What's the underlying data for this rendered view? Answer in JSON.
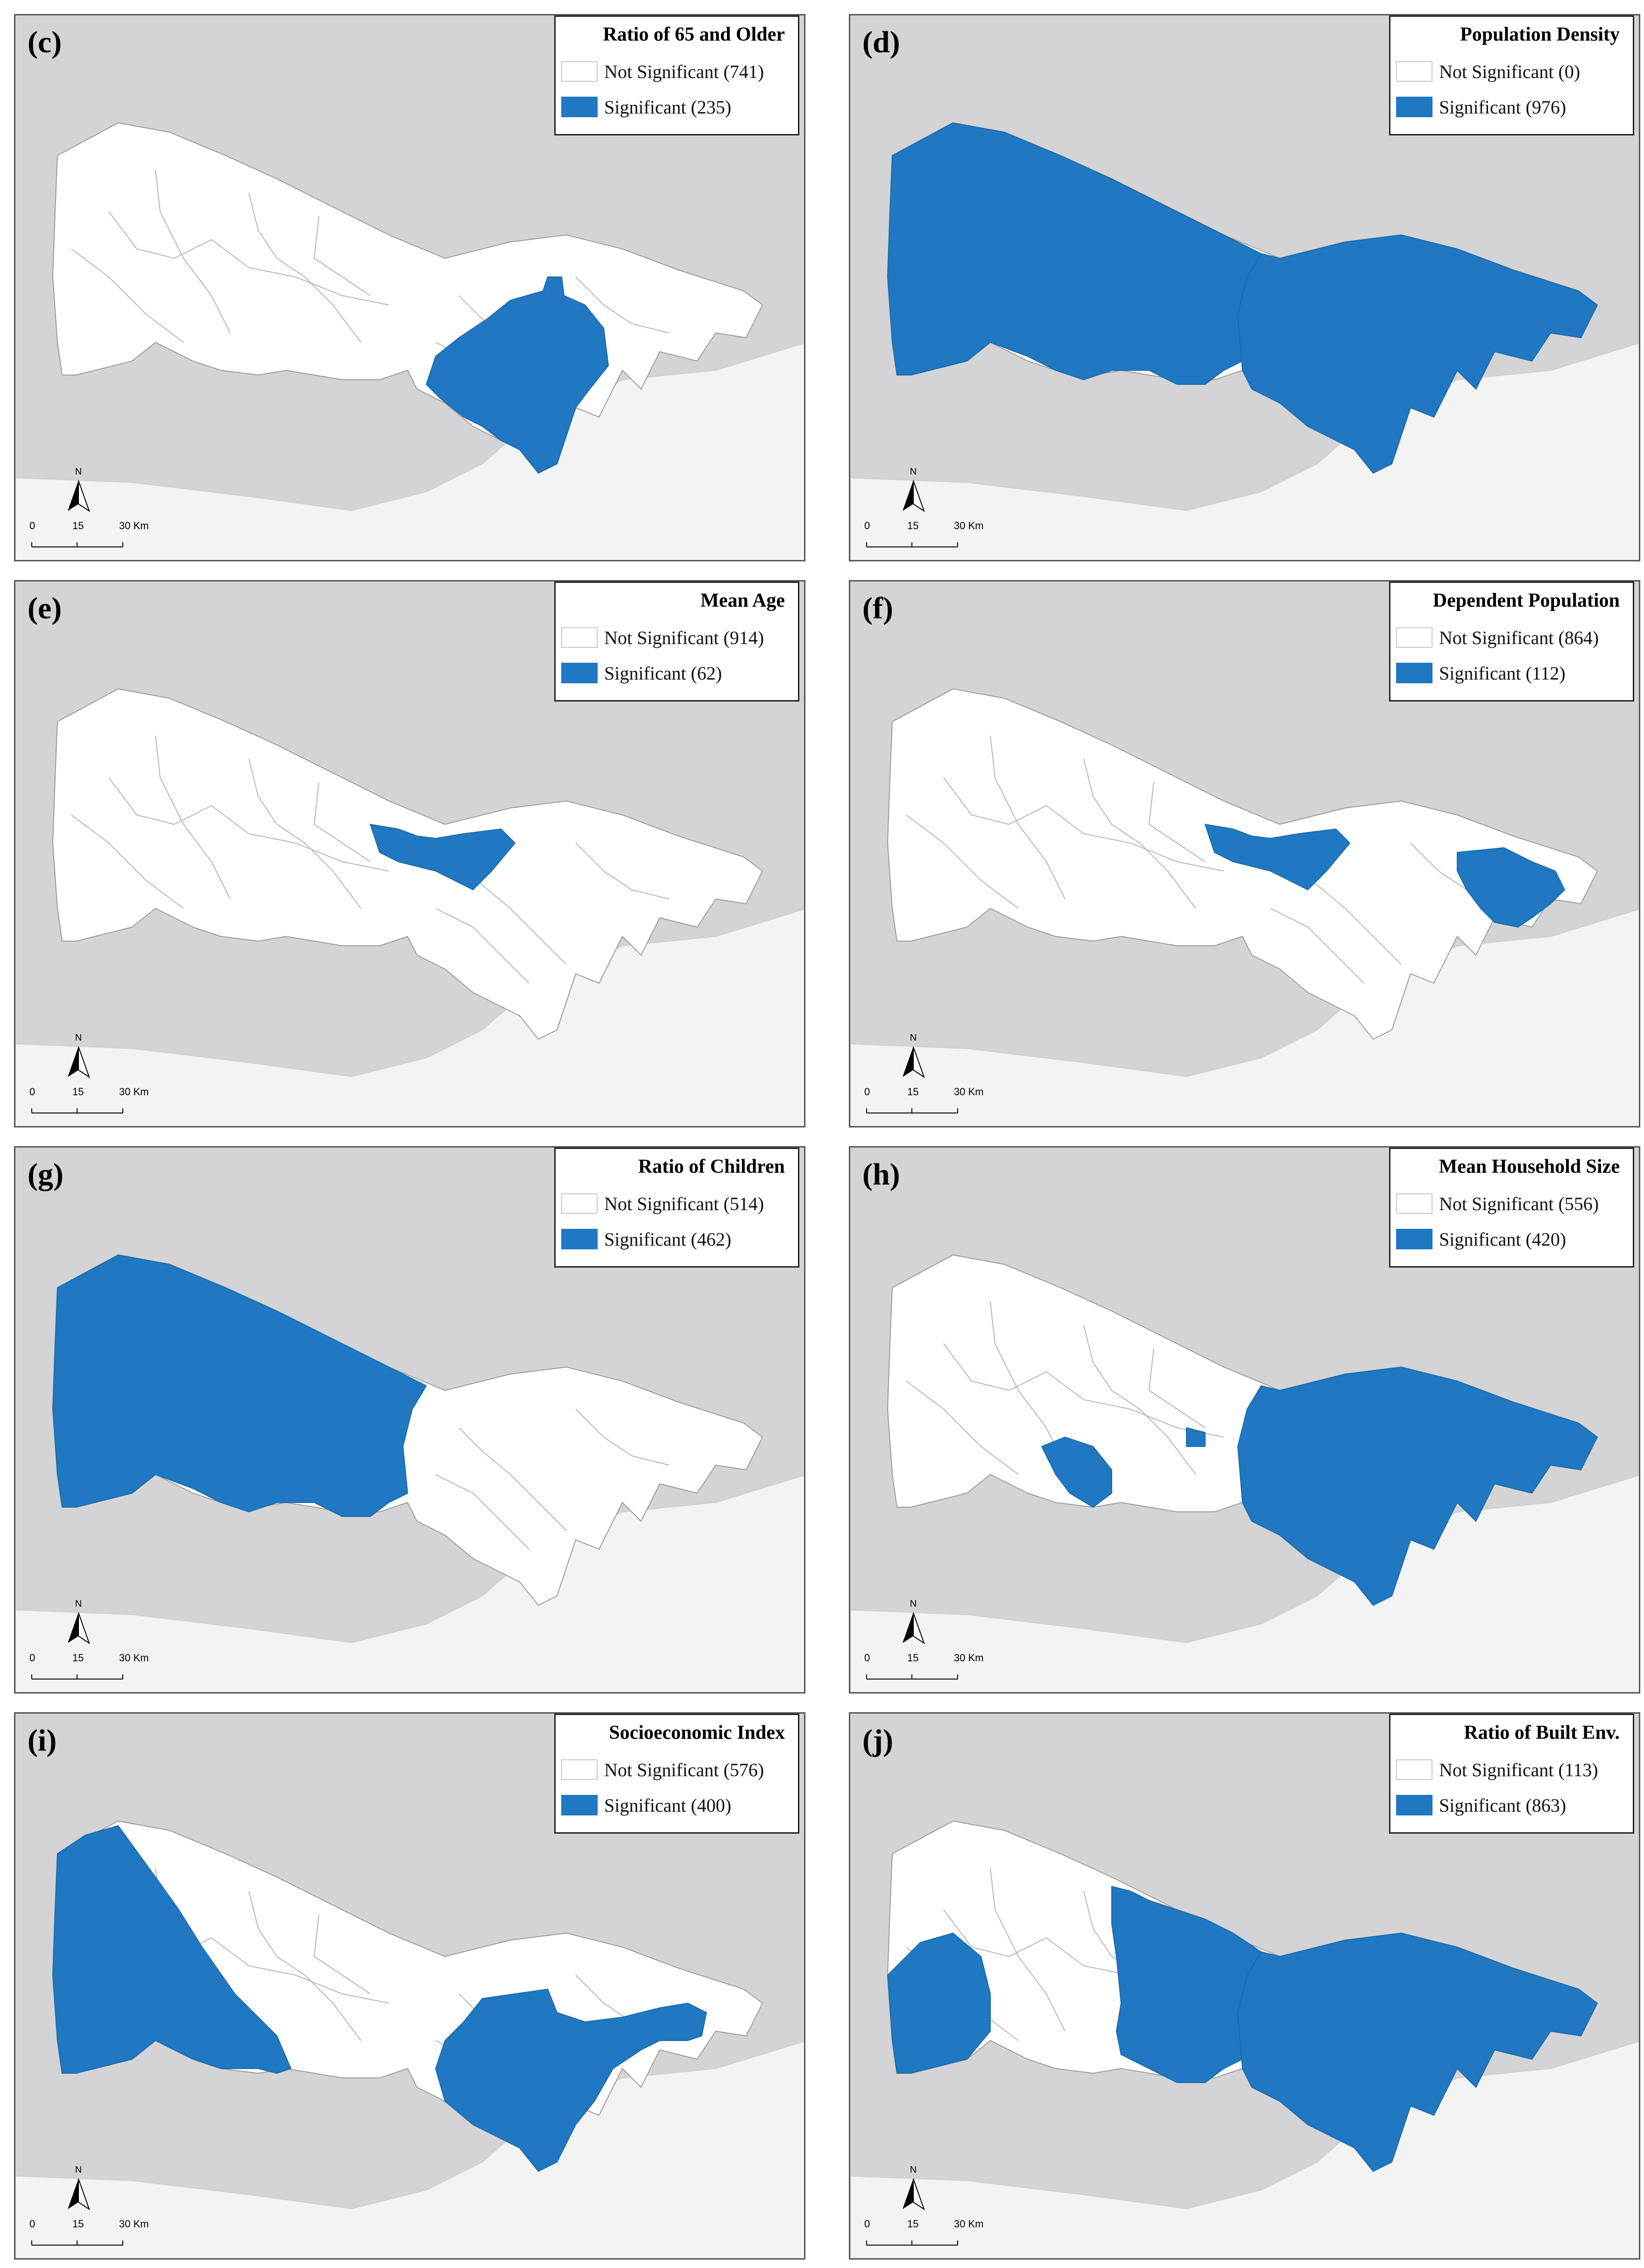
{
  "colors": {
    "water": "#d4d3d5",
    "land": "#f3f3f3",
    "significant": "#1f78c1",
    "not_significant": "#ffffff"
  },
  "panels": [
    {
      "letter": "(c)",
      "title": "Ratio of 65 and Older",
      "not_significant": "Not Significant (741)",
      "significant": "Significant (235)",
      "highlight": [
        "east_south"
      ]
    },
    {
      "letter": "(d)",
      "title": "Population Density",
      "not_significant": "Not Significant (0)",
      "significant": "Significant (976)",
      "highlight": [
        "europe_all",
        "asia_all"
      ]
    },
    {
      "letter": "(e)",
      "title": "Mean Age",
      "not_significant": "Not Significant (914)",
      "significant": "Significant (62)",
      "highlight": [
        "north_small"
      ]
    },
    {
      "letter": "(f)",
      "title": "Dependent Population",
      "not_significant": "Not Significant (864)",
      "significant": "Significant (112)",
      "highlight": [
        "north_small",
        "far_east"
      ]
    },
    {
      "letter": "(g)",
      "title": "Ratio of Children",
      "not_significant": "Not Significant (514)",
      "significant": "Significant (462)",
      "highlight": [
        "europe_all"
      ]
    },
    {
      "letter": "(h)",
      "title": "Mean Household Size",
      "not_significant": "Not Significant (556)",
      "significant": "Significant (420)",
      "highlight": [
        "asia_all",
        "west_small"
      ]
    },
    {
      "letter": "(i)",
      "title": "Socioeconomic Index",
      "not_significant": "Not Significant (576)",
      "significant": "Significant (400)",
      "highlight": [
        "west_big",
        "asia_mid"
      ]
    },
    {
      "letter": "(j)",
      "title": "Ratio of Built Env.",
      "not_significant": "Not Significant (113)",
      "significant": "Significant (863)",
      "highlight": [
        "west_tip",
        "europe_east",
        "asia_all"
      ]
    }
  ],
  "north_label": "N",
  "scale": {
    "tick0": "0",
    "tick1": "15",
    "tick2": "30 Km"
  }
}
